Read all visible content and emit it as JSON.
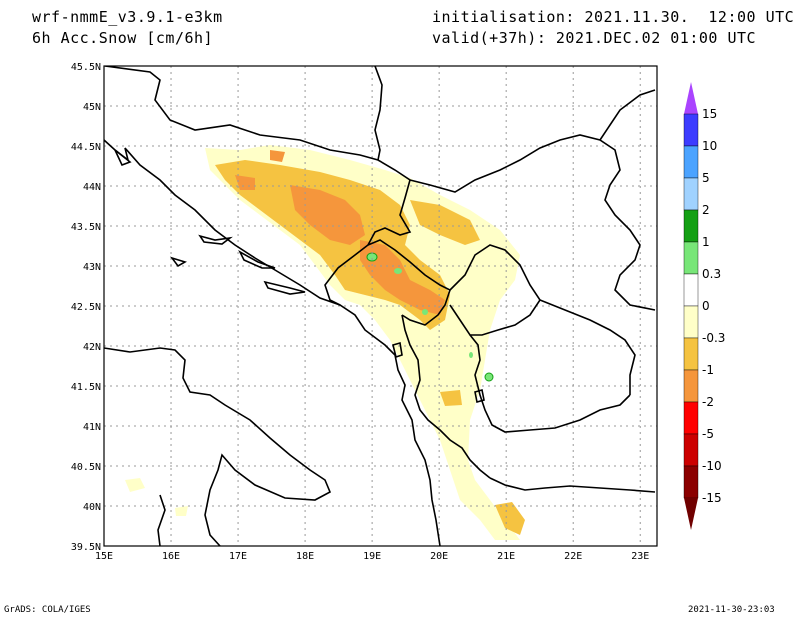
{
  "header": {
    "model": "wrf-nmmE_v3.9.1-e3km",
    "field": "6h Acc.Snow [cm/6h]",
    "init": "initialisation: 2021.11.30.  12:00 UTC",
    "valid": "valid(+37h): 2021.DEC.02 01:00 UTC"
  },
  "footer": {
    "left": "GrADS: COLA/IGES",
    "right": "2021-11-30-23:03"
  },
  "axes": {
    "lon_labels": [
      "15E",
      "16E",
      "17E",
      "18E",
      "19E",
      "20E",
      "21E",
      "22E",
      "23E"
    ],
    "lat_labels": [
      "45.5N",
      "45N",
      "44.5N",
      "44N",
      "43.5N",
      "43N",
      "42.5N",
      "42N",
      "41.5N",
      "41N",
      "40.5N",
      "40N",
      "39.5N"
    ]
  },
  "colorbar": {
    "labels": [
      "15",
      "10",
      "5",
      "2",
      "1",
      "0.3",
      "0",
      "-0.3",
      "-1",
      "-2",
      "-5",
      "-10",
      "-15"
    ],
    "colors": [
      "#6633ff",
      "#3c3cff",
      "#4ba3ff",
      "#a0d2ff",
      "#14a014",
      "#78e678",
      "#ffffff",
      "#ffffc8",
      "#f5c341",
      "#f5963c",
      "#ff0000",
      "#cc0000",
      "#8b0000"
    ],
    "top_tip": "#aa44ff",
    "bottom_tip": "#700000"
  }
}
